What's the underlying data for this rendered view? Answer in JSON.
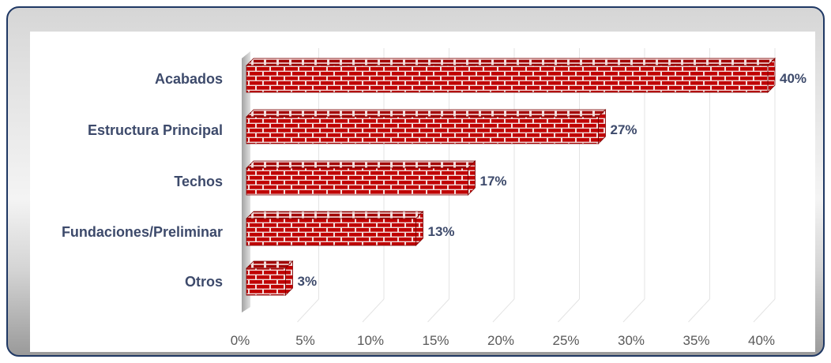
{
  "chart_data": {
    "type": "bar",
    "orientation": "horizontal",
    "categories": [
      "Acabados",
      "Estructura Principal",
      "Techos",
      "Fundaciones/Preliminar",
      "Otros"
    ],
    "values": [
      40,
      27,
      17,
      13,
      3
    ],
    "data_labels": [
      "40%",
      "27%",
      "17%",
      "13%",
      "3%"
    ],
    "xlim": [
      0,
      40
    ],
    "x_ticks": [
      0,
      5,
      10,
      15,
      20,
      25,
      30,
      35,
      40
    ],
    "x_tick_labels": [
      "0%",
      "5%",
      "10%",
      "15%",
      "20%",
      "25%",
      "30%",
      "35%",
      "40%"
    ],
    "grid": true,
    "bar_fill": "brick",
    "colors": {
      "brick": "#c00000",
      "mortar": "#f2dcdb",
      "text": "#3d4a6b",
      "frame": "#1f3864"
    }
  }
}
